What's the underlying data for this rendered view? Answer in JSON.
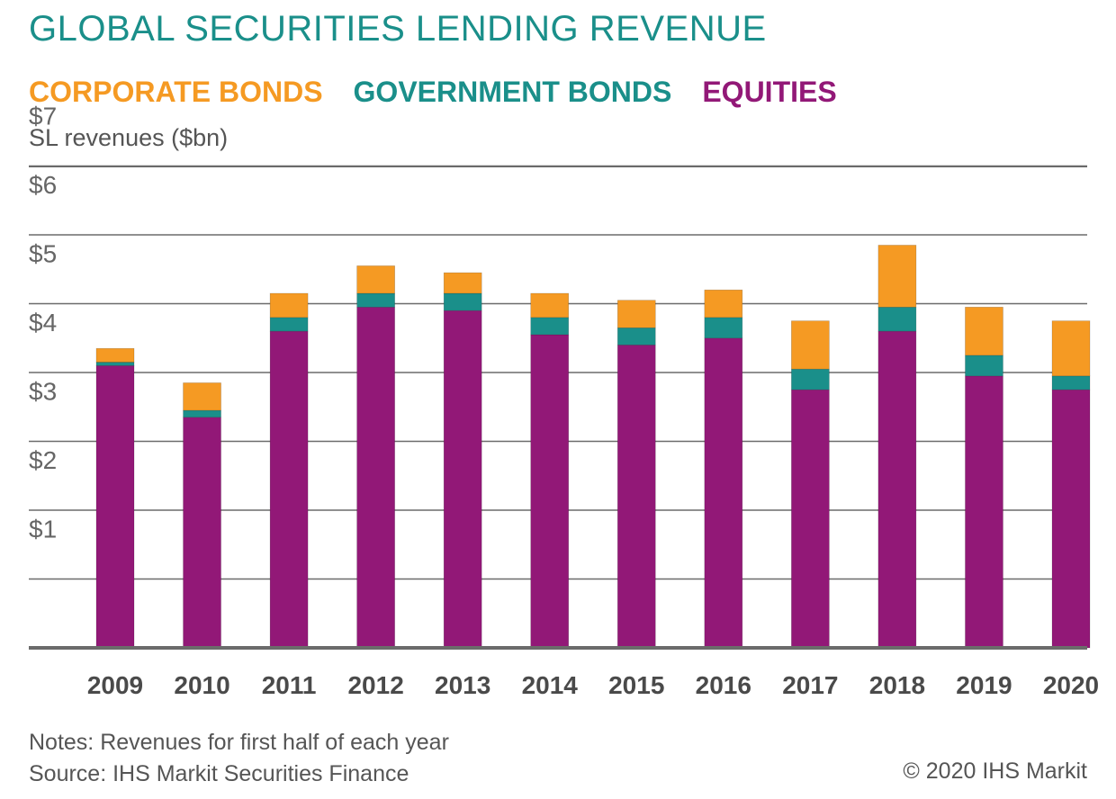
{
  "chart_data": {
    "type": "bar",
    "stacked": true,
    "title": "GLOBAL SECURITIES LENDING REVENUE",
    "ylabel": "SL revenues ($bn)",
    "xlabel": "",
    "categories": [
      "2009",
      "2010",
      "2011",
      "2012",
      "2013",
      "2014",
      "2015",
      "2016",
      "2017",
      "2018",
      "2019",
      "2020"
    ],
    "yticks": [
      "$1",
      "$2",
      "$3",
      "$4",
      "$5",
      "$6",
      "$7"
    ],
    "ylim": [
      0,
      7
    ],
    "grid": true,
    "legend_position": "top",
    "series": [
      {
        "name": "EQUITIES",
        "color": "#921877",
        "values": [
          4.1,
          3.35,
          4.6,
          4.95,
          4.9,
          4.55,
          4.4,
          4.5,
          3.75,
          4.6,
          3.95,
          3.75
        ]
      },
      {
        "name": "GOVERNMENT BONDS",
        "color": "#1a8f8a",
        "values": [
          0.05,
          0.1,
          0.2,
          0.2,
          0.25,
          0.25,
          0.25,
          0.3,
          0.3,
          0.35,
          0.3,
          0.2
        ]
      },
      {
        "name": "CORPORATE BONDS",
        "color": "#f59a23",
        "values": [
          0.2,
          0.4,
          0.35,
          0.4,
          0.3,
          0.35,
          0.4,
          0.4,
          0.7,
          0.9,
          0.7,
          0.8
        ]
      }
    ]
  },
  "legend": {
    "corporate": "CORPORATE BONDS",
    "government": "GOVERNMENT BONDS",
    "equities": "EQUITIES"
  },
  "footer": {
    "notes": "Notes: Revenues for first half of each year",
    "source": "Source: IHS Markit Securities Finance",
    "copyright": "© 2020 IHS Markit"
  },
  "colors": {
    "title": "#1a8f8a",
    "corporate": "#f59a23",
    "government": "#1a8f8a",
    "equities": "#921877",
    "grid": "#6b6b6b"
  }
}
